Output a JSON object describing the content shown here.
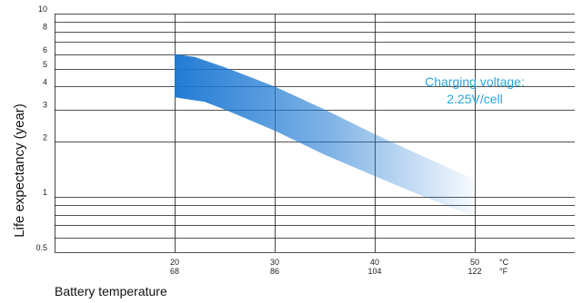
{
  "chart_data": {
    "type": "area",
    "title": "",
    "xlabel": "Battery temperature",
    "ylabel": "Life expectancy (year)",
    "y_scale": "log",
    "ylim": [
      0.5,
      10
    ],
    "xlim": [
      8,
      60
    ],
    "y_ticks": [
      {
        "value": 0.5,
        "label": "0.5"
      },
      {
        "value": 1,
        "label": "1"
      },
      {
        "value": 2,
        "label": "2"
      },
      {
        "value": 3,
        "label": "3"
      },
      {
        "value": 4,
        "label": "4"
      },
      {
        "value": 5,
        "label": "5"
      },
      {
        "value": 6,
        "label": "6"
      },
      {
        "value": 8,
        "label": "8"
      },
      {
        "value": 10,
        "label": "10"
      }
    ],
    "y_minor_gridlines": [
      0.6,
      0.7,
      0.8,
      0.9,
      7,
      9
    ],
    "x_ticks": [
      {
        "value": 20,
        "label_c": "20",
        "label_f": "68"
      },
      {
        "value": 30,
        "label_c": "30",
        "label_f": "86"
      },
      {
        "value": 40,
        "label_c": "40",
        "label_f": "104"
      },
      {
        "value": 50,
        "label_c": "50",
        "label_f": "122"
      }
    ],
    "x_units": {
      "celsius": "°C",
      "fahrenheit": "°F"
    },
    "grid": true,
    "series": [
      {
        "upper": [
          {
            "x": 20,
            "y": 6.0
          },
          {
            "x": 22,
            "y": 5.8
          },
          {
            "x": 25,
            "y": 5.1
          },
          {
            "x": 30,
            "y": 4.0
          },
          {
            "x": 35,
            "y": 3.0
          },
          {
            "x": 40,
            "y": 2.2
          },
          {
            "x": 45,
            "y": 1.65
          },
          {
            "x": 50,
            "y": 1.25
          }
        ],
        "lower": [
          {
            "x": 20,
            "y": 3.5
          },
          {
            "x": 23,
            "y": 3.3
          },
          {
            "x": 25,
            "y": 3.0
          },
          {
            "x": 30,
            "y": 2.3
          },
          {
            "x": 35,
            "y": 1.7
          },
          {
            "x": 40,
            "y": 1.3
          },
          {
            "x": 45,
            "y": 1.0
          },
          {
            "x": 50,
            "y": 0.78
          }
        ]
      }
    ],
    "annotation": {
      "lines": [
        "Charging voltage:",
        "2.25V/cell"
      ],
      "color": "#2aa6e0"
    },
    "band_color_start": "#1976d2",
    "band_color_end": "#ffffff"
  }
}
